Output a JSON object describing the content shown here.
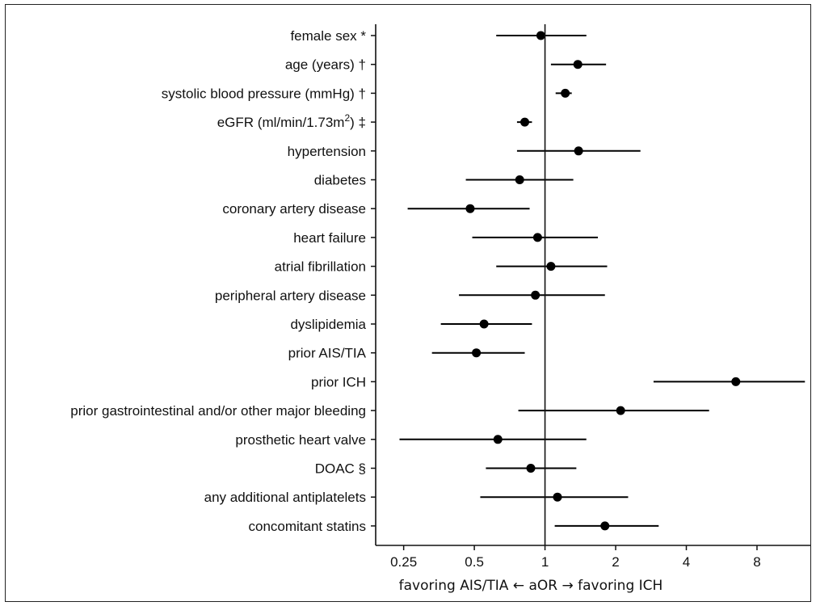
{
  "chart_data": {
    "type": "forest",
    "xlabel": "favoring AIS/TIA ← aOR → favoring ICH",
    "xscale": "log2",
    "xlim": [
      0.19,
      13.5
    ],
    "xticks": [
      0.25,
      0.5,
      1,
      2,
      4,
      8
    ],
    "xtick_labels": [
      "0.25",
      "0.5",
      "1",
      "2",
      "4",
      "8"
    ],
    "reference_line": 1,
    "rows": [
      {
        "label": "female sex *",
        "est": 0.96,
        "lo": 0.62,
        "hi": 1.5
      },
      {
        "label": "age (years) †",
        "est": 1.38,
        "lo": 1.06,
        "hi": 1.82
      },
      {
        "label": "systolic blood pressure (mmHg) †",
        "est": 1.22,
        "lo": 1.11,
        "hi": 1.3
      },
      {
        "label": "eGFR (ml/min/1.73m²) ‡",
        "est": 0.82,
        "lo": 0.76,
        "hi": 0.88
      },
      {
        "label": "hypertension",
        "est": 1.39,
        "lo": 0.76,
        "hi": 2.55
      },
      {
        "label": "diabetes",
        "est": 0.78,
        "lo": 0.46,
        "hi": 1.32
      },
      {
        "label": "coronary artery disease",
        "est": 0.48,
        "lo": 0.26,
        "hi": 0.86
      },
      {
        "label": "heart failure",
        "est": 0.93,
        "lo": 0.49,
        "hi": 1.68
      },
      {
        "label": "atrial fibrillation",
        "est": 1.06,
        "lo": 0.62,
        "hi": 1.84
      },
      {
        "label": "peripheral artery disease",
        "est": 0.91,
        "lo": 0.43,
        "hi": 1.8
      },
      {
        "label": "dyslipidemia",
        "est": 0.55,
        "lo": 0.36,
        "hi": 0.88
      },
      {
        "label": "prior AIS/TIA",
        "est": 0.51,
        "lo": 0.33,
        "hi": 0.82
      },
      {
        "label": "prior ICH",
        "est": 6.5,
        "lo": 2.9,
        "hi": 12.8
      },
      {
        "label": "prior gastrointestinal and/or other major bleeding",
        "est": 2.1,
        "lo": 0.77,
        "hi": 5.0
      },
      {
        "label": "prosthetic heart valve",
        "est": 0.63,
        "lo": 0.24,
        "hi": 1.5
      },
      {
        "label": "DOAC §",
        "est": 0.87,
        "lo": 0.56,
        "hi": 1.36
      },
      {
        "label": "any additional antiplatelets",
        "est": 1.13,
        "lo": 0.53,
        "hi": 2.26
      },
      {
        "label": "concomitant statins",
        "est": 1.8,
        "lo": 1.1,
        "hi": 3.05
      }
    ]
  }
}
